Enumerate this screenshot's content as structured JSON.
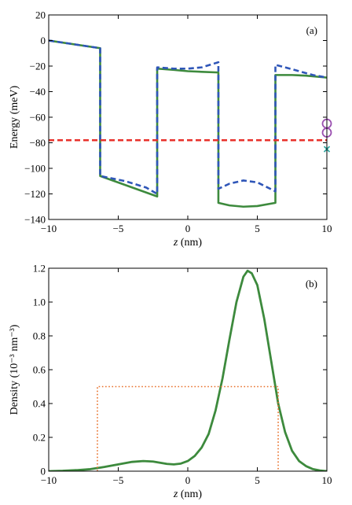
{
  "chart_data": [
    {
      "panel_label": "(a)",
      "type": "line",
      "xlabel_italic": "z",
      "xlabel_rest": " (nm)",
      "ylabel": "Energy (meV)",
      "xlim": [
        -10,
        10
      ],
      "ylim": [
        -140,
        20
      ],
      "xticks": [
        -10,
        -5,
        0,
        5,
        10
      ],
      "xtick_labels": [
        "−10",
        "−5",
        "0",
        "5",
        "10"
      ],
      "yticks": [
        20,
        0,
        -20,
        -40,
        -60,
        -80,
        -100,
        -120,
        -140
      ],
      "ytick_labels": [
        "20",
        "0",
        "−20",
        "−40",
        "−60",
        "−80",
        "−100",
        "−120",
        "−140"
      ],
      "series": [
        {
          "color": "#3d8a3d",
          "style": "solid",
          "width": 2.6,
          "points": [
            [
              -10,
              0
            ],
            [
              -6.3,
              -6
            ],
            [
              -6.3,
              -106
            ],
            [
              -2.2,
              -122
            ],
            [
              -2.2,
              -22
            ],
            [
              -1,
              -23
            ],
            [
              0,
              -24
            ],
            [
              1,
              -24.5
            ],
            [
              2.2,
              -25
            ],
            [
              2.2,
              -127
            ],
            [
              3,
              -129
            ],
            [
              4,
              -130
            ],
            [
              5,
              -129.5
            ],
            [
              6.3,
              -127
            ],
            [
              6.3,
              -27
            ],
            [
              7.5,
              -27
            ],
            [
              8.5,
              -27.5
            ],
            [
              10,
              -29
            ]
          ]
        },
        {
          "color": "#2f56b8",
          "style": "dashed",
          "width": 2.6,
          "points": [
            [
              -10,
              0
            ],
            [
              -6.3,
              -6
            ],
            [
              -6.3,
              -106
            ],
            [
              -4.5,
              -110
            ],
            [
              -3,
              -115
            ],
            [
              -2.2,
              -120
            ],
            [
              -2.2,
              -21
            ],
            [
              -1,
              -22
            ],
            [
              0,
              -22
            ],
            [
              1,
              -21
            ],
            [
              2.2,
              -17
            ],
            [
              2.2,
              -116
            ],
            [
              3,
              -112
            ],
            [
              4,
              -109.5
            ],
            [
              5,
              -111
            ],
            [
              6.3,
              -118
            ],
            [
              6.3,
              -19
            ],
            [
              7,
              -21
            ],
            [
              8,
              -24
            ],
            [
              9,
              -27
            ],
            [
              10,
              -29
            ]
          ]
        },
        {
          "color": "#e8302a",
          "style": "dashed",
          "width": 2.4,
          "points": [
            [
              -10,
              -78
            ],
            [
              10,
              -78
            ]
          ]
        }
      ],
      "markers": [
        {
          "shape": "circle",
          "color": "#9a4fb0",
          "x": 10,
          "y": -65
        },
        {
          "shape": "circle",
          "color": "#9a4fb0",
          "x": 10,
          "y": -72
        },
        {
          "shape": "cross",
          "color": "#2fa6a0",
          "x": 10,
          "y": -85
        }
      ]
    },
    {
      "panel_label": "(b)",
      "type": "line",
      "xlabel_italic": "z",
      "xlabel_rest": " (nm)",
      "ylabel": "Density (10⁻³ nm⁻³)",
      "xlim": [
        -10,
        10
      ],
      "ylim": [
        0,
        1.2
      ],
      "xticks": [
        -10,
        -5,
        0,
        5,
        10
      ],
      "xtick_labels": [
        "−10",
        "−5",
        "0",
        "5",
        "10"
      ],
      "yticks": [
        0,
        0.2,
        0.4,
        0.6,
        0.8,
        1.0,
        1.2
      ],
      "ytick_labels": [
        "0",
        "0.2",
        "0.4",
        "0.6",
        "0.8",
        "1.0",
        "1.2"
      ],
      "series": [
        {
          "color": "#3d8a3d",
          "style": "solid",
          "width": 2.8,
          "points": [
            [
              -10,
              0
            ],
            [
              -9,
              0.002
            ],
            [
              -8,
              0.006
            ],
            [
              -7,
              0.012
            ],
            [
              -6,
              0.025
            ],
            [
              -5,
              0.04
            ],
            [
              -4,
              0.055
            ],
            [
              -3.2,
              0.06
            ],
            [
              -2.5,
              0.057
            ],
            [
              -2,
              0.05
            ],
            [
              -1.5,
              0.043
            ],
            [
              -1,
              0.04
            ],
            [
              -0.5,
              0.045
            ],
            [
              0,
              0.06
            ],
            [
              0.5,
              0.09
            ],
            [
              1,
              0.14
            ],
            [
              1.5,
              0.22
            ],
            [
              2,
              0.36
            ],
            [
              2.5,
              0.55
            ],
            [
              3,
              0.78
            ],
            [
              3.5,
              1.0
            ],
            [
              4,
              1.15
            ],
            [
              4.3,
              1.185
            ],
            [
              4.6,
              1.17
            ],
            [
              5,
              1.1
            ],
            [
              5.5,
              0.9
            ],
            [
              6,
              0.65
            ],
            [
              6.5,
              0.4
            ],
            [
              7,
              0.23
            ],
            [
              7.5,
              0.12
            ],
            [
              8,
              0.06
            ],
            [
              8.5,
              0.03
            ],
            [
              9,
              0.012
            ],
            [
              9.5,
              0.004
            ],
            [
              10,
              0
            ]
          ]
        },
        {
          "color": "#e8702a",
          "style": "dotted",
          "width": 1.6,
          "points": [
            [
              -6.5,
              0
            ],
            [
              -6.5,
              0.5
            ],
            [
              6.5,
              0.5
            ],
            [
              6.5,
              0
            ]
          ]
        }
      ],
      "markers": []
    }
  ]
}
